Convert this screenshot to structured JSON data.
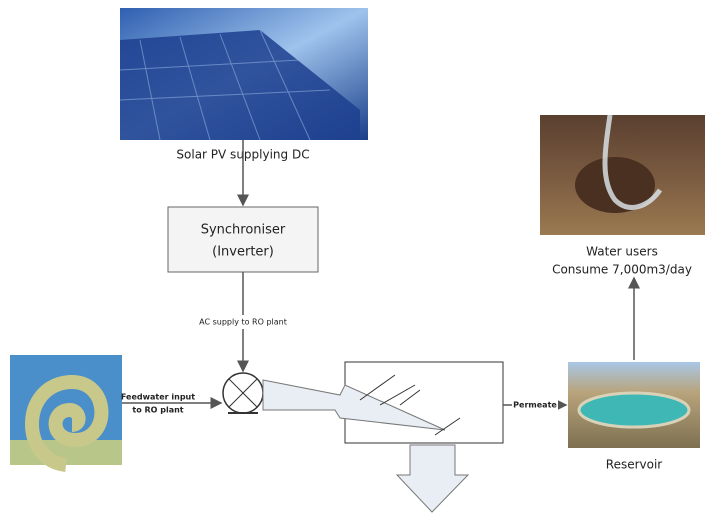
{
  "solar": {
    "label": "Solar PV supplying DC"
  },
  "synchroniser": {
    "title": "Synchroniser",
    "subtitle": "(Inverter)"
  },
  "ac_supply": {
    "label": "AC supply to RO plant"
  },
  "feedwater": {
    "line1": "Feedwater input",
    "line2": "to RO plant"
  },
  "permeate": {
    "label": "Permeate"
  },
  "reservoir": {
    "label": "Reservoir"
  },
  "water_users": {
    "line1": "Water users",
    "line2": "Consume 7,000m3/day"
  }
}
